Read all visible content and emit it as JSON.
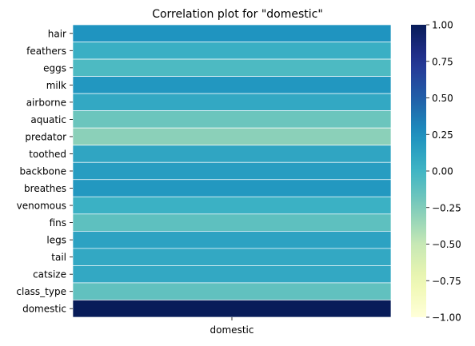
{
  "chart_data": {
    "type": "heatmap",
    "title": "Correlation plot for \"domestic\"",
    "xlabel": "",
    "ylabel": "",
    "columns": [
      "domestic"
    ],
    "rows": [
      "hair",
      "feathers",
      "eggs",
      "milk",
      "airborne",
      "aquatic",
      "predator",
      "toothed",
      "backbone",
      "breathes",
      "venomous",
      "fins",
      "legs",
      "tail",
      "catsize",
      "class_type",
      "domestic"
    ],
    "values": [
      0.23,
      0.04,
      -0.05,
      0.21,
      0.09,
      -0.17,
      -0.29,
      0.11,
      0.17,
      0.2,
      0.03,
      -0.12,
      0.13,
      0.09,
      0.09,
      -0.13,
      1.0
    ],
    "vmin": -1.0,
    "vmax": 1.0,
    "colormap": "YlGnBu",
    "colorbar_ticks": [
      "1.00",
      "0.75",
      "0.50",
      "0.25",
      "0.00",
      "−0.25",
      "−0.50",
      "−0.75",
      "−1.00"
    ],
    "colorbar_tick_values": [
      1.0,
      0.75,
      0.5,
      0.25,
      0.0,
      -0.25,
      -0.5,
      -0.75,
      -1.0
    ],
    "grid": false
  }
}
